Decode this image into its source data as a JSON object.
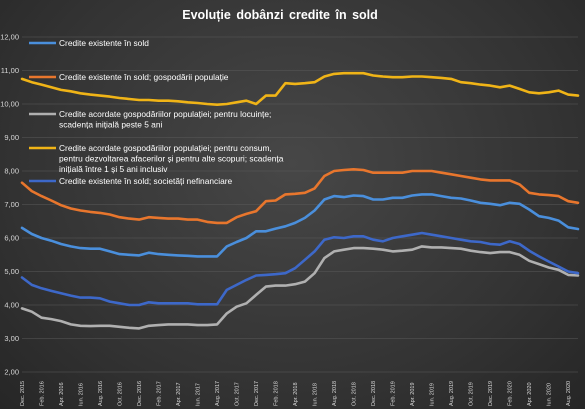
{
  "chart_data": {
    "type": "line",
    "title": "Evoluție  dobânzi   credite  în sold",
    "ylim": [
      2,
      12
    ],
    "y_ticks": [
      "2,00",
      "3,00",
      "4,00",
      "5,00",
      "6,00",
      "7,00",
      "8,00",
      "9,00",
      "10,00",
      "11,00",
      "12,00"
    ],
    "grid": true,
    "legend_position": "inside-upper-left",
    "x_tick_labels": [
      "Dec. 2015",
      "Feb. 2016",
      "Apr. 2016",
      "Iun. 2016",
      "Aug. 2016",
      "Oct. 2016",
      "Dec. 2016",
      "Feb. 2017",
      "Apr. 2017",
      "Iun. 2017",
      "Aug. 2017",
      "Oct. 2017",
      "Dec. 2017",
      "Feb. 2018",
      "Apr. 2018",
      "Iun. 2018",
      "Aug. 2018",
      "Oct. 2018",
      "Dec. 2018",
      "Feb. 2019",
      "Apr. 2019",
      "Iun. 2019",
      "Aug. 2019",
      "Oct. 2019",
      "Dec. 2019",
      "Feb. 2020",
      "Apr. 2020",
      "Iun. 2020",
      "Aug. 2020"
    ],
    "x": [
      "Dec. 2015",
      "Ian. 2016",
      "Feb. 2016",
      "Mar. 2016",
      "Apr. 2016",
      "Mai 2016",
      "Iun. 2016",
      "Iul. 2016",
      "Aug. 2016",
      "Sep. 2016",
      "Oct. 2016",
      "Nov. 2016",
      "Dec. 2016",
      "Ian. 2017",
      "Feb. 2017",
      "Mar. 2017",
      "Apr. 2017",
      "Mai 2017",
      "Iun. 2017",
      "Iul. 2017",
      "Aug. 2017",
      "Sep. 2017",
      "Oct. 2017",
      "Nov. 2017",
      "Dec. 2017",
      "Ian. 2018",
      "Feb. 2018",
      "Mar. 2018",
      "Apr. 2018",
      "Mai 2018",
      "Iun. 2018",
      "Iul. 2018",
      "Aug. 2018",
      "Sep. 2018",
      "Oct. 2018",
      "Nov. 2018",
      "Dec. 2018",
      "Ian. 2019",
      "Feb. 2019",
      "Mar. 2019",
      "Apr. 2019",
      "Mai 2019",
      "Iun. 2019",
      "Iul. 2019",
      "Aug. 2019",
      "Sep. 2019",
      "Oct. 2019",
      "Nov. 2019",
      "Dec. 2019",
      "Ian. 2020",
      "Feb. 2020",
      "Mar. 2020",
      "Apr. 2020",
      "Mai 2020",
      "Iun. 2020",
      "Iul. 2020",
      "Aug. 2020",
      "Sep. 2020"
    ],
    "series": [
      {
        "name": "Credite existente în sold",
        "color": "#4a8fdc",
        "values": [
          6.3,
          6.12,
          6.0,
          5.92,
          5.82,
          5.75,
          5.7,
          5.68,
          5.68,
          5.6,
          5.52,
          5.5,
          5.48,
          5.56,
          5.52,
          5.5,
          5.48,
          5.47,
          5.45,
          5.45,
          5.45,
          5.75,
          5.88,
          6.0,
          6.2,
          6.2,
          6.28,
          6.35,
          6.45,
          6.6,
          6.82,
          7.15,
          7.25,
          7.22,
          7.27,
          7.25,
          7.15,
          7.15,
          7.2,
          7.2,
          7.27,
          7.3,
          7.3,
          7.25,
          7.2,
          7.18,
          7.12,
          7.05,
          7.02,
          6.98,
          7.05,
          7.02,
          6.85,
          6.65,
          6.6,
          6.52,
          6.32,
          6.27
        ]
      },
      {
        "name": "Credite existente în sold; gospodării populație",
        "color": "#e8762d",
        "values": [
          7.65,
          7.4,
          7.25,
          7.12,
          6.98,
          6.88,
          6.82,
          6.78,
          6.75,
          6.7,
          6.62,
          6.58,
          6.55,
          6.62,
          6.6,
          6.58,
          6.58,
          6.55,
          6.55,
          6.48,
          6.45,
          6.45,
          6.62,
          6.72,
          6.8,
          7.1,
          7.12,
          7.3,
          7.32,
          7.35,
          7.48,
          7.85,
          8.0,
          8.03,
          8.05,
          8.03,
          7.95,
          7.95,
          7.95,
          7.95,
          8.0,
          8.0,
          8.0,
          7.95,
          7.9,
          7.85,
          7.8,
          7.75,
          7.72,
          7.72,
          7.72,
          7.6,
          7.35,
          7.3,
          7.28,
          7.25,
          7.1,
          7.05
        ]
      },
      {
        "name": "Credite acordate gospodăriilor populației; pentru locuințe; scadența inițială peste 5 ani",
        "color": "#b0b0b0",
        "values": [
          3.9,
          3.8,
          3.62,
          3.58,
          3.52,
          3.42,
          3.38,
          3.37,
          3.38,
          3.38,
          3.35,
          3.32,
          3.3,
          3.38,
          3.4,
          3.42,
          3.42,
          3.42,
          3.4,
          3.4,
          3.42,
          3.75,
          3.95,
          4.05,
          4.3,
          4.55,
          4.58,
          4.58,
          4.62,
          4.7,
          4.95,
          5.4,
          5.6,
          5.65,
          5.7,
          5.7,
          5.68,
          5.65,
          5.6,
          5.62,
          5.65,
          5.75,
          5.72,
          5.72,
          5.7,
          5.68,
          5.62,
          5.58,
          5.55,
          5.58,
          5.58,
          5.5,
          5.32,
          5.22,
          5.12,
          5.05,
          4.9,
          4.88
        ]
      },
      {
        "name": "Credite acordate gospodăriilor populației; pentru consum, pentru dezvoltarea afacerilor și pentru alte scopuri; scadența inițială între 1 și 5 ani inclusiv",
        "color": "#f0b417",
        "values": [
          10.75,
          10.65,
          10.58,
          10.5,
          10.42,
          10.38,
          10.32,
          10.28,
          10.25,
          10.22,
          10.18,
          10.15,
          10.12,
          10.12,
          10.1,
          10.1,
          10.08,
          10.05,
          10.03,
          10.0,
          9.98,
          10.0,
          10.05,
          10.1,
          10.0,
          10.25,
          10.25,
          10.62,
          10.6,
          10.62,
          10.65,
          10.82,
          10.9,
          10.92,
          10.92,
          10.92,
          10.85,
          10.82,
          10.8,
          10.8,
          10.82,
          10.82,
          10.8,
          10.78,
          10.75,
          10.65,
          10.62,
          10.58,
          10.55,
          10.5,
          10.55,
          10.45,
          10.35,
          10.32,
          10.35,
          10.4,
          10.28,
          10.25
        ]
      },
      {
        "name": "Credite existente în sold; societăți nefinanciare",
        "color": "#3d68c9",
        "values": [
          4.82,
          4.6,
          4.5,
          4.42,
          4.35,
          4.28,
          4.22,
          4.22,
          4.2,
          4.1,
          4.05,
          4.0,
          4.0,
          4.08,
          4.05,
          4.05,
          4.05,
          4.05,
          4.02,
          4.02,
          4.02,
          4.45,
          4.6,
          4.75,
          4.88,
          4.9,
          4.92,
          4.95,
          5.1,
          5.35,
          5.6,
          5.95,
          6.02,
          6.0,
          6.05,
          6.05,
          5.95,
          5.9,
          6.0,
          6.05,
          6.1,
          6.15,
          6.1,
          6.05,
          6.0,
          5.95,
          5.9,
          5.88,
          5.82,
          5.8,
          5.9,
          5.82,
          5.62,
          5.45,
          5.3,
          5.15,
          5.0,
          4.95
        ]
      }
    ]
  }
}
